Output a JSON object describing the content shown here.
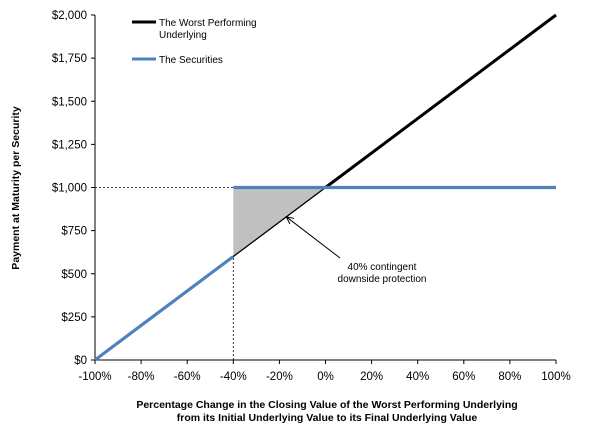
{
  "chart_data": {
    "type": "line",
    "xlabel": [
      "Percentage Change in the Closing Value of the Worst Performing Underlying",
      "from its Initial Underlying Value to its Final Underlying Value"
    ],
    "ylabel": "Payment at Maturity per Security",
    "xlim": [
      -100,
      100
    ],
    "ylim": [
      0,
      2000
    ],
    "x_ticks": [
      -100,
      -80,
      -60,
      -40,
      -20,
      0,
      20,
      40,
      60,
      80,
      100
    ],
    "x_tick_labels": [
      "-100%",
      "-80%",
      "-60%",
      "-40%",
      "-20%",
      "0%",
      "20%",
      "40%",
      "60%",
      "80%",
      "100%"
    ],
    "y_ticks": [
      0,
      250,
      500,
      750,
      1000,
      1250,
      1500,
      1750,
      2000
    ],
    "y_tick_labels": [
      "$0",
      "$250",
      "$500",
      "$750",
      "$1,000",
      "$1,250",
      "$1,500",
      "$1,750",
      "$2,000"
    ],
    "legend_position": "top-left",
    "series": [
      {
        "name": "The Worst Performing Underlying",
        "legend_lines": [
          "The Worst Performing",
          "Underlying"
        ],
        "color": "#000000",
        "x": [
          -100,
          100
        ],
        "y": [
          0,
          2000
        ]
      },
      {
        "name": "The Securities",
        "legend_lines": [
          "The Securities"
        ],
        "color": "#4f81bd",
        "segments": [
          {
            "x": [
              -100,
              -40
            ],
            "y": [
              0,
              600
            ]
          },
          {
            "x": [
              -40,
              100
            ],
            "y": [
              1000,
              1000
            ]
          }
        ]
      }
    ],
    "shaded_region": {
      "color": "#c0c0c0",
      "x": [
        -40,
        -40,
        0
      ],
      "y": [
        600,
        1000,
        1000
      ]
    },
    "reference_lines": [
      {
        "x": [
          -100,
          -40
        ],
        "y": [
          1000,
          1000
        ],
        "style": "dashed"
      },
      {
        "x": [
          -40,
          -40
        ],
        "y": [
          0,
          600
        ],
        "style": "dashed"
      }
    ],
    "annotation": {
      "lines": [
        "40% contingent",
        "downside protection"
      ],
      "arrow_target": [
        -17,
        830
      ]
    }
  }
}
